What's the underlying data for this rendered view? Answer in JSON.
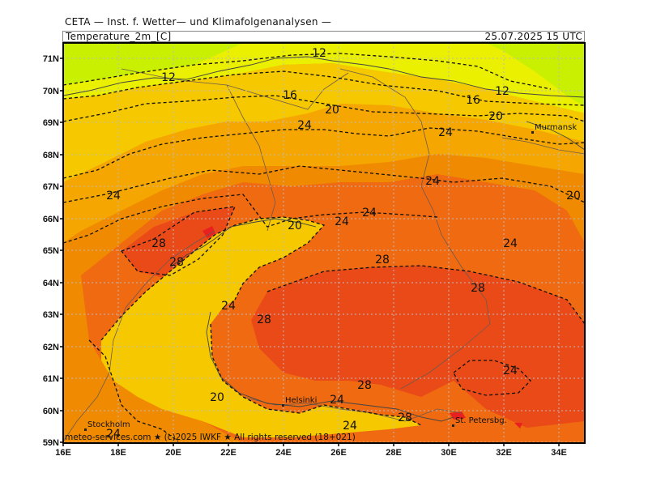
{
  "header": {
    "title": "CETA — Inst. f. Wetter— und Klimafolgenanalysen —",
    "variable": "Temperature_2m_[C]",
    "valid_time": "25.07.2025  15 UTC"
  },
  "footer": {
    "credit": "meteo-services.com ★ (c)2025 IWKF ★ All rights reserved (18+021)"
  },
  "map": {
    "lon_ticks": [
      "16E",
      "18E",
      "20E",
      "22E",
      "24E",
      "26E",
      "28E",
      "30E",
      "32E",
      "34E"
    ],
    "lat_ticks": [
      "71N",
      "70N",
      "69N",
      "68N",
      "67N",
      "66N",
      "65N",
      "64N",
      "63N",
      "62N",
      "61N",
      "60N",
      "59N"
    ],
    "cities": [
      "Murmansk",
      "Helsinki",
      "St. Petersbg.",
      "Stockholm"
    ],
    "contour_labels": [
      "12",
      "12",
      "12",
      "16",
      "16",
      "20",
      "20",
      "20",
      "20",
      "20",
      "24",
      "24",
      "24",
      "24",
      "24",
      "24",
      "24",
      "24",
      "24",
      "24",
      "24",
      "24",
      "28",
      "28",
      "28",
      "28",
      "28",
      "28",
      "28"
    ],
    "colors": {
      "t10_14": "#c8f000",
      "t14_18": "#eaf000",
      "t18_22": "#f5c800",
      "t22_24": "#f5a600",
      "t24_26": "#f08a00",
      "t26_28": "#ef6a10",
      "t28_30": "#ea4a18",
      "t30plus": "#e82020"
    }
  }
}
